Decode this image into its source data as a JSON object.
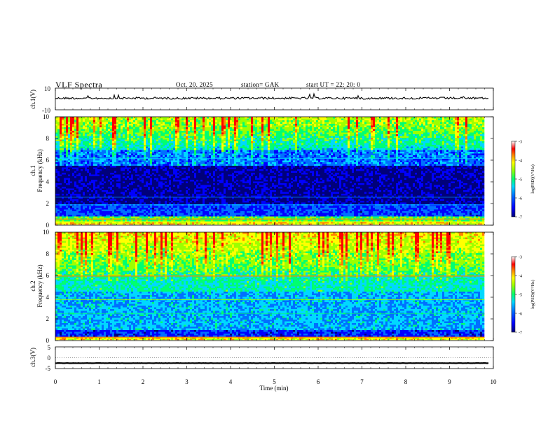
{
  "header": {
    "title": "VLF  Spectra",
    "date": "Oct. 20. 2025",
    "station": "station= GAK",
    "start": "start  UT  =    22: 20: 0"
  },
  "chart_data": [
    {
      "type": "line",
      "name": "ch1-waveform",
      "ylabel": "ch.1(V)",
      "ylim": [
        -10,
        10
      ],
      "yticks": [
        "10",
        "-10"
      ],
      "xlim": [
        0,
        10
      ],
      "level": 0.7
    },
    {
      "type": "heatmap",
      "name": "ch1-spectrogram",
      "ylabel": "ch.1\nFrequency (kHz)",
      "ylabel_line1": "ch.1",
      "ylabel_line2": "Frequency (kHz)",
      "ylim": [
        0,
        10
      ],
      "yticks": [
        "0",
        "2",
        "4",
        "6",
        "8",
        "10"
      ],
      "xlim": [
        0,
        10
      ],
      "data_end_min": 9.8,
      "colorbar": {
        "label": "log(PSD)(V²/Hz)",
        "range": [
          -7,
          -3
        ],
        "ticks": [
          "-3",
          "-4",
          "-5",
          "-6",
          "-7"
        ]
      }
    },
    {
      "type": "heatmap",
      "name": "ch2-spectrogram",
      "ylabel_line1": "ch.2",
      "ylabel_line2": "Frequency (kHz)",
      "ylim": [
        0,
        10
      ],
      "yticks": [
        "0",
        "2",
        "4",
        "6",
        "8",
        "10"
      ],
      "xlim": [
        0,
        10
      ],
      "data_end_min": 9.8,
      "colorbar": {
        "label": "log(PSD)(V²/Hz)",
        "range": [
          -7,
          -3
        ],
        "ticks": [
          "-3",
          "-4",
          "-5",
          "-6",
          "-7"
        ]
      }
    },
    {
      "type": "line",
      "name": "ch3-waveform",
      "ylabel": "ch.3(V)",
      "ylim": [
        -5,
        5
      ],
      "yticks": [
        "5",
        "0",
        "-5"
      ],
      "xlim": [
        0,
        10
      ],
      "level": -2.5
    }
  ],
  "xaxis": {
    "label": "Time  (min)",
    "ticks": [
      "0",
      "1",
      "2",
      "3",
      "4",
      "5",
      "6",
      "7",
      "8",
      "9",
      "10"
    ]
  },
  "colors": {
    "colormap": [
      "#00007a",
      "#0000ff",
      "#0070ff",
      "#00d8ff",
      "#00ff70",
      "#9cff00",
      "#ffff00",
      "#ff8000",
      "#ff0000",
      "#ffffff"
    ]
  }
}
